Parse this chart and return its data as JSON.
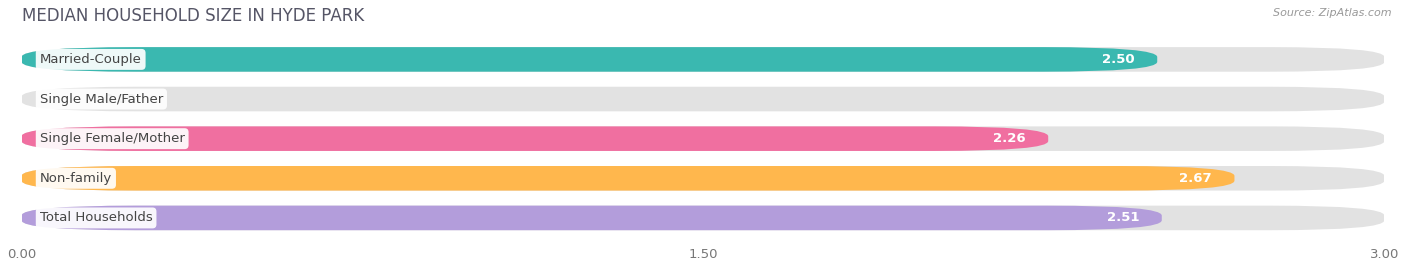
{
  "title": "MEDIAN HOUSEHOLD SIZE IN HYDE PARK",
  "source": "Source: ZipAtlas.com",
  "categories": [
    "Married-Couple",
    "Single Male/Father",
    "Single Female/Mother",
    "Non-family",
    "Total Households"
  ],
  "values": [
    2.5,
    0.0,
    2.26,
    2.67,
    2.51
  ],
  "bar_colors": [
    "#3ab8b0",
    "#a8c8e8",
    "#f06fa0",
    "#ffb74d",
    "#b39ddb"
  ],
  "xlim": [
    0,
    3.0
  ],
  "xticks": [
    0.0,
    1.5,
    3.0
  ],
  "xticklabels": [
    "0.00",
    "1.50",
    "3.00"
  ],
  "background_color": "#f5f5f5",
  "bar_bg_color": "#e2e2e2",
  "title_fontsize": 12,
  "label_fontsize": 9.5,
  "value_fontsize": 9.5,
  "bar_height": 0.62
}
